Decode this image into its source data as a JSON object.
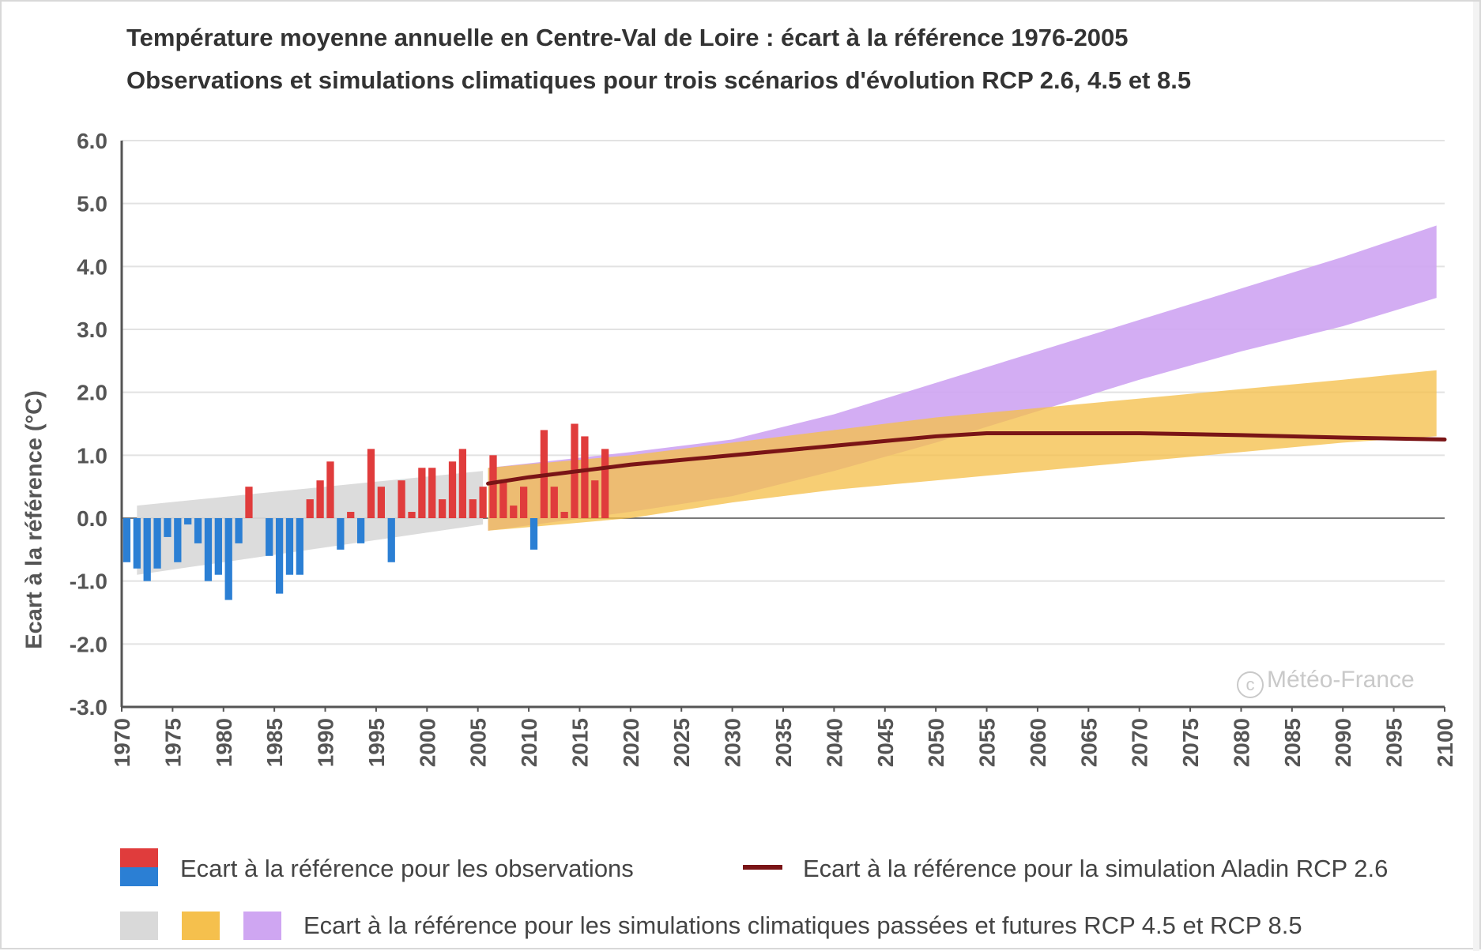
{
  "chart_data": {
    "type": "bar",
    "title": "Température moyenne annuelle en Centre-Val de Loire : écart à la référence 1976-2005",
    "subtitle": "Observations et simulations climatiques pour trois scénarios d'évolution RCP 2.6, 4.5 et 8.5",
    "ylabel": "Ecart à la référence (°C)",
    "xlabel": "",
    "xlim": [
      1970,
      2100
    ],
    "ylim": [
      -3.0,
      6.0
    ],
    "y_ticks": [
      "6.0",
      "5.0",
      "4.0",
      "3.0",
      "2.0",
      "1.0",
      "0.0",
      "-1.0",
      "-2.0",
      "-3.0"
    ],
    "x_ticks": [
      "1970",
      "1975",
      "1980",
      "1985",
      "1990",
      "1995",
      "2000",
      "2005",
      "2010",
      "2015",
      "2020",
      "2025",
      "2030",
      "2035",
      "2040",
      "2045",
      "2050",
      "2055",
      "2060",
      "2065",
      "2070",
      "2075",
      "2080",
      "2085",
      "2090",
      "2095",
      "2100"
    ],
    "grid": true,
    "legend_position": "bottom",
    "observations": {
      "name": "Ecart à la référence pour les observations",
      "color_positive": "#e03c3c",
      "color_negative": "#2b7fd4",
      "years": [
        1970,
        1971,
        1972,
        1973,
        1974,
        1975,
        1976,
        1977,
        1978,
        1979,
        1980,
        1981,
        1982,
        1983,
        1984,
        1985,
        1986,
        1987,
        1988,
        1989,
        1990,
        1991,
        1992,
        1993,
        1994,
        1995,
        1996,
        1997,
        1998,
        1999,
        2000,
        2001,
        2002,
        2003,
        2004,
        2005,
        2006,
        2007,
        2008,
        2009,
        2010,
        2011,
        2012,
        2013,
        2014,
        2015,
        2016,
        2017
      ],
      "values": [
        -0.7,
        -0.8,
        -1.0,
        -0.8,
        -0.3,
        -0.7,
        -0.1,
        -0.4,
        -1.0,
        -0.9,
        -1.3,
        -0.4,
        0.5,
        0.0,
        -0.6,
        -1.2,
        -0.9,
        -0.9,
        0.3,
        0.6,
        0.9,
        -0.5,
        0.1,
        -0.4,
        1.1,
        0.5,
        -0.7,
        0.6,
        0.1,
        0.8,
        0.8,
        0.3,
        0.9,
        1.1,
        0.3,
        0.5,
        1.0,
        0.6,
        0.2,
        0.5,
        -0.5,
        1.4,
        0.5,
        0.1,
        1.5,
        1.3,
        0.6,
        1.1
      ]
    },
    "bands": [
      {
        "name": "simulations passées",
        "color": "#d9d9d9",
        "points": [
          {
            "x": 1971.5,
            "low": -0.9,
            "high": 0.2
          },
          {
            "x": 2005.5,
            "low": -0.1,
            "high": 0.75
          }
        ]
      },
      {
        "name": "RCP 8.5",
        "color": "#cfa6f2",
        "points": [
          {
            "x": 2006,
            "low": -0.2,
            "high": 0.8
          },
          {
            "x": 2020,
            "low": 0.1,
            "high": 1.05
          },
          {
            "x": 2030,
            "low": 0.35,
            "high": 1.25
          },
          {
            "x": 2040,
            "low": 0.75,
            "high": 1.65
          },
          {
            "x": 2050,
            "low": 1.2,
            "high": 2.15
          },
          {
            "x": 2060,
            "low": 1.7,
            "high": 2.65
          },
          {
            "x": 2070,
            "low": 2.2,
            "high": 3.15
          },
          {
            "x": 2080,
            "low": 2.65,
            "high": 3.65
          },
          {
            "x": 2090,
            "low": 3.05,
            "high": 4.15
          },
          {
            "x": 2099.2,
            "low": 3.5,
            "high": 4.65
          }
        ]
      },
      {
        "name": "RCP 4.5",
        "color": "#f5c04d",
        "points": [
          {
            "x": 2006,
            "low": -0.2,
            "high": 0.8
          },
          {
            "x": 2020,
            "low": 0.0,
            "high": 1.0
          },
          {
            "x": 2030,
            "low": 0.25,
            "high": 1.2
          },
          {
            "x": 2040,
            "low": 0.45,
            "high": 1.4
          },
          {
            "x": 2050,
            "low": 0.6,
            "high": 1.6
          },
          {
            "x": 2060,
            "low": 0.75,
            "high": 1.75
          },
          {
            "x": 2070,
            "low": 0.9,
            "high": 1.9
          },
          {
            "x": 2080,
            "low": 1.05,
            "high": 2.05
          },
          {
            "x": 2090,
            "low": 1.2,
            "high": 2.2
          },
          {
            "x": 2099.2,
            "low": 1.3,
            "high": 2.35
          }
        ]
      }
    ],
    "line": {
      "name": "Ecart à la référence pour la simulation Aladin RCP 2.6",
      "color": "#7a1416",
      "x": [
        2006,
        2010,
        2020,
        2030,
        2040,
        2050,
        2055,
        2060,
        2070,
        2080,
        2090,
        2100
      ],
      "y": [
        0.55,
        0.65,
        0.85,
        1.0,
        1.15,
        1.3,
        1.35,
        1.35,
        1.35,
        1.32,
        1.28,
        1.25
      ]
    },
    "legend": {
      "obs_label": "Ecart à la référence pour les observations",
      "line_label": "Ecart à la référence pour la simulation Aladin RCP 2.6",
      "bands_label": "Ecart à la référence pour les simulations climatiques passées et futures RCP 4.5 et RCP 8.5"
    },
    "copyright": "Météo-France"
  }
}
